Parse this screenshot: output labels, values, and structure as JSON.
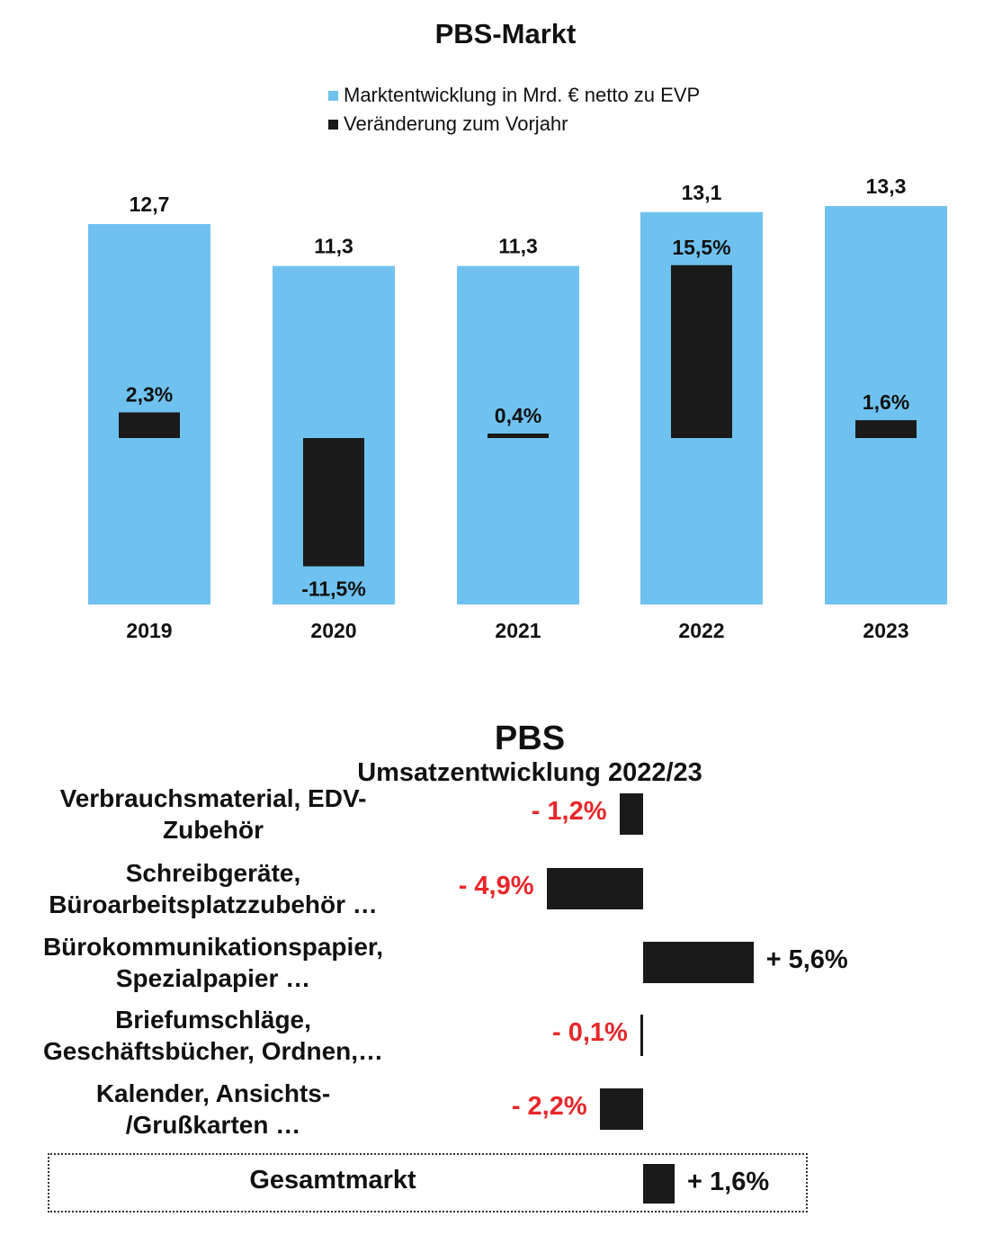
{
  "chart_data": [
    {
      "type": "bar",
      "title": "PBS-Markt",
      "legend": [
        {
          "label": "Marktentwicklung in Mrd. € netto zu EVP",
          "color": "#6fc2ef"
        },
        {
          "label": "Veränderung zum Vorjahr",
          "color": "#1a1a1a"
        }
      ],
      "categories": [
        "2019",
        "2020",
        "2021",
        "2022",
        "2023"
      ],
      "series": [
        {
          "name": "Marktentwicklung in Mrd. € netto zu EVP",
          "values": [
            12.7,
            11.3,
            11.3,
            13.1,
            13.3
          ],
          "labels": [
            "12,7",
            "11,3",
            "11,3",
            "13,1",
            "13,3"
          ]
        },
        {
          "name": "Veränderung zum Vorjahr",
          "values": [
            2.3,
            -11.5,
            0.4,
            15.5,
            1.6
          ],
          "labels": [
            "2,3%",
            "-11,5%",
            "0,4%",
            "15,5%",
            "1,6%"
          ]
        }
      ],
      "legend_position": "top",
      "grid": false
    },
    {
      "type": "bar",
      "orientation": "horizontal",
      "title": "PBS",
      "subtitle": "Umsatzentwicklung 2022/23",
      "categories": [
        [
          "Verbrauchsmaterial, EDV-",
          "Zubehör"
        ],
        [
          "Schreibgeräte,",
          "Büroarbeitsplatzzubehör …"
        ],
        [
          "Bürokommunikationspapier,",
          "Spezialpapier …"
        ],
        [
          "Briefumschläge,",
          "Geschäftsbücher, Ordnen,…"
        ],
        [
          "Kalender, Ansichts-",
          "/Grußkarten …"
        ]
      ],
      "values": [
        -1.2,
        -4.9,
        5.6,
        -0.1,
        -2.2
      ],
      "labels": [
        "- 1,2%",
        "- 4,9%",
        "+ 5,6%",
        "- 0,1%",
        "- 2,2%"
      ],
      "total": {
        "label": "Gesamtmarkt",
        "value": 1.6,
        "text": "+ 1,6%"
      },
      "colors": {
        "bar": "#1a1a1a",
        "negative_label": "#e8262a",
        "positive_label": "#111111"
      }
    }
  ]
}
